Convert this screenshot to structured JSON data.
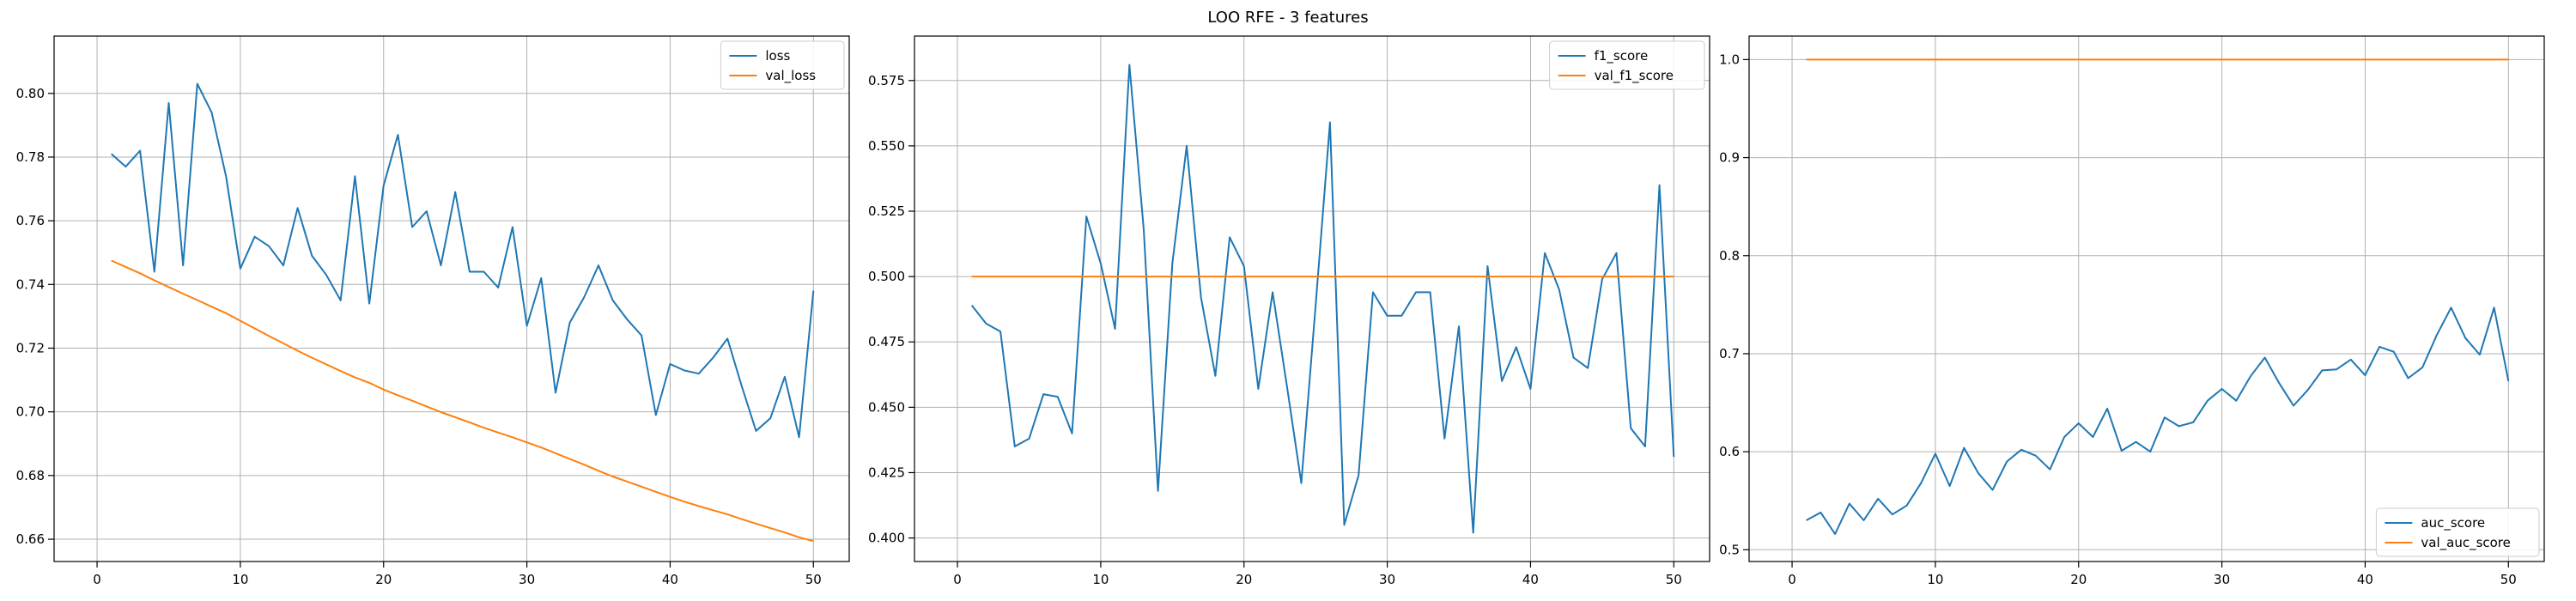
{
  "figure": {
    "title": "LOO RFE - 3 features"
  },
  "colors": {
    "series_a": "#1f77b4",
    "series_b": "#ff7f0e",
    "grid": "#b0b0b0"
  },
  "chart_data": [
    {
      "type": "line",
      "grid": true,
      "legend": "top-right",
      "xlim": [
        -3,
        52.5
      ],
      "ylim": [
        0.653,
        0.818
      ],
      "xticks": [
        0,
        10,
        20,
        30,
        40,
        50
      ],
      "yticks": [
        0.66,
        0.68,
        0.7,
        0.72,
        0.74,
        0.76,
        0.78,
        0.8
      ],
      "ytick_labels": [
        "0.66",
        "0.68",
        "0.70",
        "0.72",
        "0.74",
        "0.76",
        "0.78",
        "0.80"
      ],
      "x": [
        1,
        2,
        3,
        4,
        5,
        6,
        7,
        8,
        9,
        10,
        11,
        12,
        13,
        14,
        15,
        16,
        17,
        18,
        19,
        20,
        21,
        22,
        23,
        24,
        25,
        26,
        27,
        28,
        29,
        30,
        31,
        32,
        33,
        34,
        35,
        36,
        37,
        38,
        39,
        40,
        41,
        42,
        43,
        44,
        45,
        46,
        47,
        48,
        49,
        50
      ],
      "series": [
        {
          "name": "loss",
          "values": [
            0.781,
            0.777,
            0.782,
            0.744,
            0.797,
            0.746,
            0.803,
            0.794,
            0.774,
            0.745,
            0.755,
            0.752,
            0.746,
            0.764,
            0.749,
            0.743,
            0.735,
            0.774,
            0.734,
            0.771,
            0.787,
            0.758,
            0.763,
            0.746,
            0.769,
            0.744,
            0.744,
            0.739,
            0.758,
            0.727,
            0.742,
            0.706,
            0.728,
            0.736,
            0.746,
            0.735,
            0.729,
            0.724,
            0.699,
            0.715,
            0.713,
            0.712,
            0.717,
            0.723,
            0.708,
            0.694,
            0.698,
            0.711,
            0.692,
            0.738
          ]
        },
        {
          "name": "val_loss",
          "values": [
            0.7475,
            0.7455,
            0.7435,
            0.7413,
            0.7392,
            0.7371,
            0.7351,
            0.733,
            0.731,
            0.7286,
            0.7262,
            0.7238,
            0.7215,
            0.7192,
            0.717,
            0.7149,
            0.7128,
            0.7108,
            0.7091,
            0.707,
            0.7052,
            0.7035,
            0.7017,
            0.6999,
            0.6983,
            0.6967,
            0.695,
            0.6935,
            0.692,
            0.6904,
            0.6888,
            0.687,
            0.6852,
            0.6834,
            0.6815,
            0.6797,
            0.6781,
            0.6765,
            0.6749,
            0.6733,
            0.6718,
            0.6704,
            0.6691,
            0.6678,
            0.6663,
            0.6649,
            0.6635,
            0.6621,
            0.6606,
            0.6594
          ]
        }
      ]
    },
    {
      "type": "line",
      "grid": true,
      "legend": "top-right",
      "xlim": [
        -3,
        52.5
      ],
      "ylim": [
        0.391,
        0.592
      ],
      "xticks": [
        0,
        10,
        20,
        30,
        40,
        50
      ],
      "yticks": [
        0.4,
        0.425,
        0.45,
        0.475,
        0.5,
        0.525,
        0.55,
        0.575
      ],
      "ytick_labels": [
        "0.400",
        "0.425",
        "0.450",
        "0.475",
        "0.500",
        "0.525",
        "0.550",
        "0.575"
      ],
      "x": [
        1,
        2,
        3,
        4,
        5,
        6,
        7,
        8,
        9,
        10,
        11,
        12,
        13,
        14,
        15,
        16,
        17,
        18,
        19,
        20,
        21,
        22,
        23,
        24,
        25,
        26,
        27,
        28,
        29,
        30,
        31,
        32,
        33,
        34,
        35,
        36,
        37,
        38,
        39,
        40,
        41,
        42,
        43,
        44,
        45,
        46,
        47,
        48,
        49,
        50
      ],
      "series": [
        {
          "name": "f1_score",
          "values": [
            0.489,
            0.482,
            0.479,
            0.435,
            0.438,
            0.455,
            0.454,
            0.44,
            0.523,
            0.505,
            0.48,
            0.581,
            0.518,
            0.418,
            0.505,
            0.55,
            0.492,
            0.462,
            0.515,
            0.504,
            0.457,
            0.494,
            0.458,
            0.421,
            0.489,
            0.559,
            0.405,
            0.424,
            0.494,
            0.485,
            0.485,
            0.494,
            0.494,
            0.438,
            0.481,
            0.402,
            0.504,
            0.46,
            0.473,
            0.457,
            0.509,
            0.495,
            0.469,
            0.465,
            0.499,
            0.509,
            0.442,
            0.435,
            0.535,
            0.431
          ]
        },
        {
          "name": "val_f1_score",
          "values": [
            0.5,
            0.5,
            0.5,
            0.5,
            0.5,
            0.5,
            0.5,
            0.5,
            0.5,
            0.5,
            0.5,
            0.5,
            0.5,
            0.5,
            0.5,
            0.5,
            0.5,
            0.5,
            0.5,
            0.5,
            0.5,
            0.5,
            0.5,
            0.5,
            0.5,
            0.5,
            0.5,
            0.5,
            0.5,
            0.5,
            0.5,
            0.5,
            0.5,
            0.5,
            0.5,
            0.5,
            0.5,
            0.5,
            0.5,
            0.5,
            0.5,
            0.5,
            0.5,
            0.5,
            0.5,
            0.5,
            0.5,
            0.5,
            0.5,
            0.5
          ]
        }
      ]
    },
    {
      "type": "line",
      "grid": true,
      "legend": "bottom-right",
      "xlim": [
        -3,
        52.5
      ],
      "ylim": [
        0.488,
        1.024
      ],
      "xticks": [
        0,
        10,
        20,
        30,
        40,
        50
      ],
      "yticks": [
        0.5,
        0.6,
        0.7,
        0.8,
        0.9,
        1.0
      ],
      "ytick_labels": [
        "0.5",
        "0.6",
        "0.7",
        "0.8",
        "0.9",
        "1.0"
      ],
      "x": [
        1,
        2,
        3,
        4,
        5,
        6,
        7,
        8,
        9,
        10,
        11,
        12,
        13,
        14,
        15,
        16,
        17,
        18,
        19,
        20,
        21,
        22,
        23,
        24,
        25,
        26,
        27,
        28,
        29,
        30,
        31,
        32,
        33,
        34,
        35,
        36,
        37,
        38,
        39,
        40,
        41,
        42,
        43,
        44,
        45,
        46,
        47,
        48,
        49,
        50
      ],
      "series": [
        {
          "name": "auc_score",
          "values": [
            0.53,
            0.538,
            0.516,
            0.547,
            0.53,
            0.552,
            0.536,
            0.545,
            0.568,
            0.598,
            0.565,
            0.604,
            0.578,
            0.561,
            0.59,
            0.602,
            0.596,
            0.582,
            0.615,
            0.629,
            0.615,
            0.644,
            0.601,
            0.61,
            0.6,
            0.635,
            0.626,
            0.63,
            0.652,
            0.664,
            0.652,
            0.677,
            0.696,
            0.67,
            0.647,
            0.663,
            0.683,
            0.684,
            0.694,
            0.678,
            0.707,
            0.702,
            0.675,
            0.686,
            0.719,
            0.747,
            0.716,
            0.699,
            0.747,
            0.672
          ]
        },
        {
          "name": "val_auc_score",
          "values": [
            1.0,
            1.0,
            1.0,
            1.0,
            1.0,
            1.0,
            1.0,
            1.0,
            1.0,
            1.0,
            1.0,
            1.0,
            1.0,
            1.0,
            1.0,
            1.0,
            1.0,
            1.0,
            1.0,
            1.0,
            1.0,
            1.0,
            1.0,
            1.0,
            1.0,
            1.0,
            1.0,
            1.0,
            1.0,
            1.0,
            1.0,
            1.0,
            1.0,
            1.0,
            1.0,
            1.0,
            1.0,
            1.0,
            1.0,
            1.0,
            1.0,
            1.0,
            1.0,
            1.0,
            1.0,
            1.0,
            1.0,
            1.0,
            1.0,
            1.0
          ]
        }
      ]
    }
  ]
}
